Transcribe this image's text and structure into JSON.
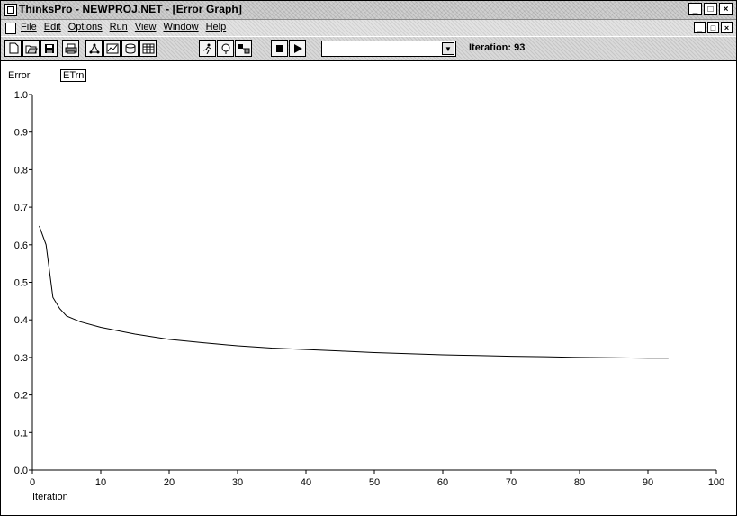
{
  "window": {
    "title": "ThinksPro - NEWPROJ.NET - [Error Graph]",
    "controls": [
      "_",
      "□",
      "×"
    ],
    "child_controls": [
      "_",
      "□",
      "×"
    ]
  },
  "menu": {
    "items": [
      "File",
      "Edit",
      "Options",
      "Run",
      "View",
      "Window",
      "Help"
    ]
  },
  "toolbar": {
    "buttons": [
      "new-icon",
      "open-icon",
      "save-icon",
      "print-icon",
      "network-icon",
      "graph-icon",
      "data-icon",
      "table-icon",
      "run-icon",
      "probe-icon",
      "weights-icon",
      "stop-icon",
      "play-icon"
    ],
    "combo_value": "",
    "iteration_label": "Iteration:",
    "iteration_value": "93"
  },
  "chart_data": {
    "type": "line",
    "ylabel": "Error",
    "xlabel": "Iteration",
    "legend": [
      "ETrn"
    ],
    "xlim": [
      0,
      100
    ],
    "ylim": [
      0.0,
      1.0
    ],
    "x_ticks": [
      "0",
      "10",
      "20",
      "30",
      "40",
      "50",
      "60",
      "70",
      "80",
      "90",
      "100"
    ],
    "y_ticks": [
      "0.0",
      "0.1",
      "0.2",
      "0.3",
      "0.4",
      "0.5",
      "0.6",
      "0.7",
      "0.8",
      "0.9",
      "1.0"
    ],
    "series": [
      {
        "name": "ETrn",
        "x": [
          1,
          2,
          3,
          4,
          5,
          7,
          10,
          15,
          20,
          25,
          30,
          35,
          40,
          45,
          50,
          55,
          60,
          65,
          70,
          75,
          80,
          85,
          90,
          93
        ],
        "y": [
          0.65,
          0.6,
          0.46,
          0.43,
          0.41,
          0.395,
          0.38,
          0.362,
          0.348,
          0.339,
          0.331,
          0.325,
          0.321,
          0.317,
          0.313,
          0.31,
          0.307,
          0.305,
          0.303,
          0.302,
          0.3,
          0.299,
          0.298,
          0.298
        ]
      }
    ],
    "grid": false
  }
}
